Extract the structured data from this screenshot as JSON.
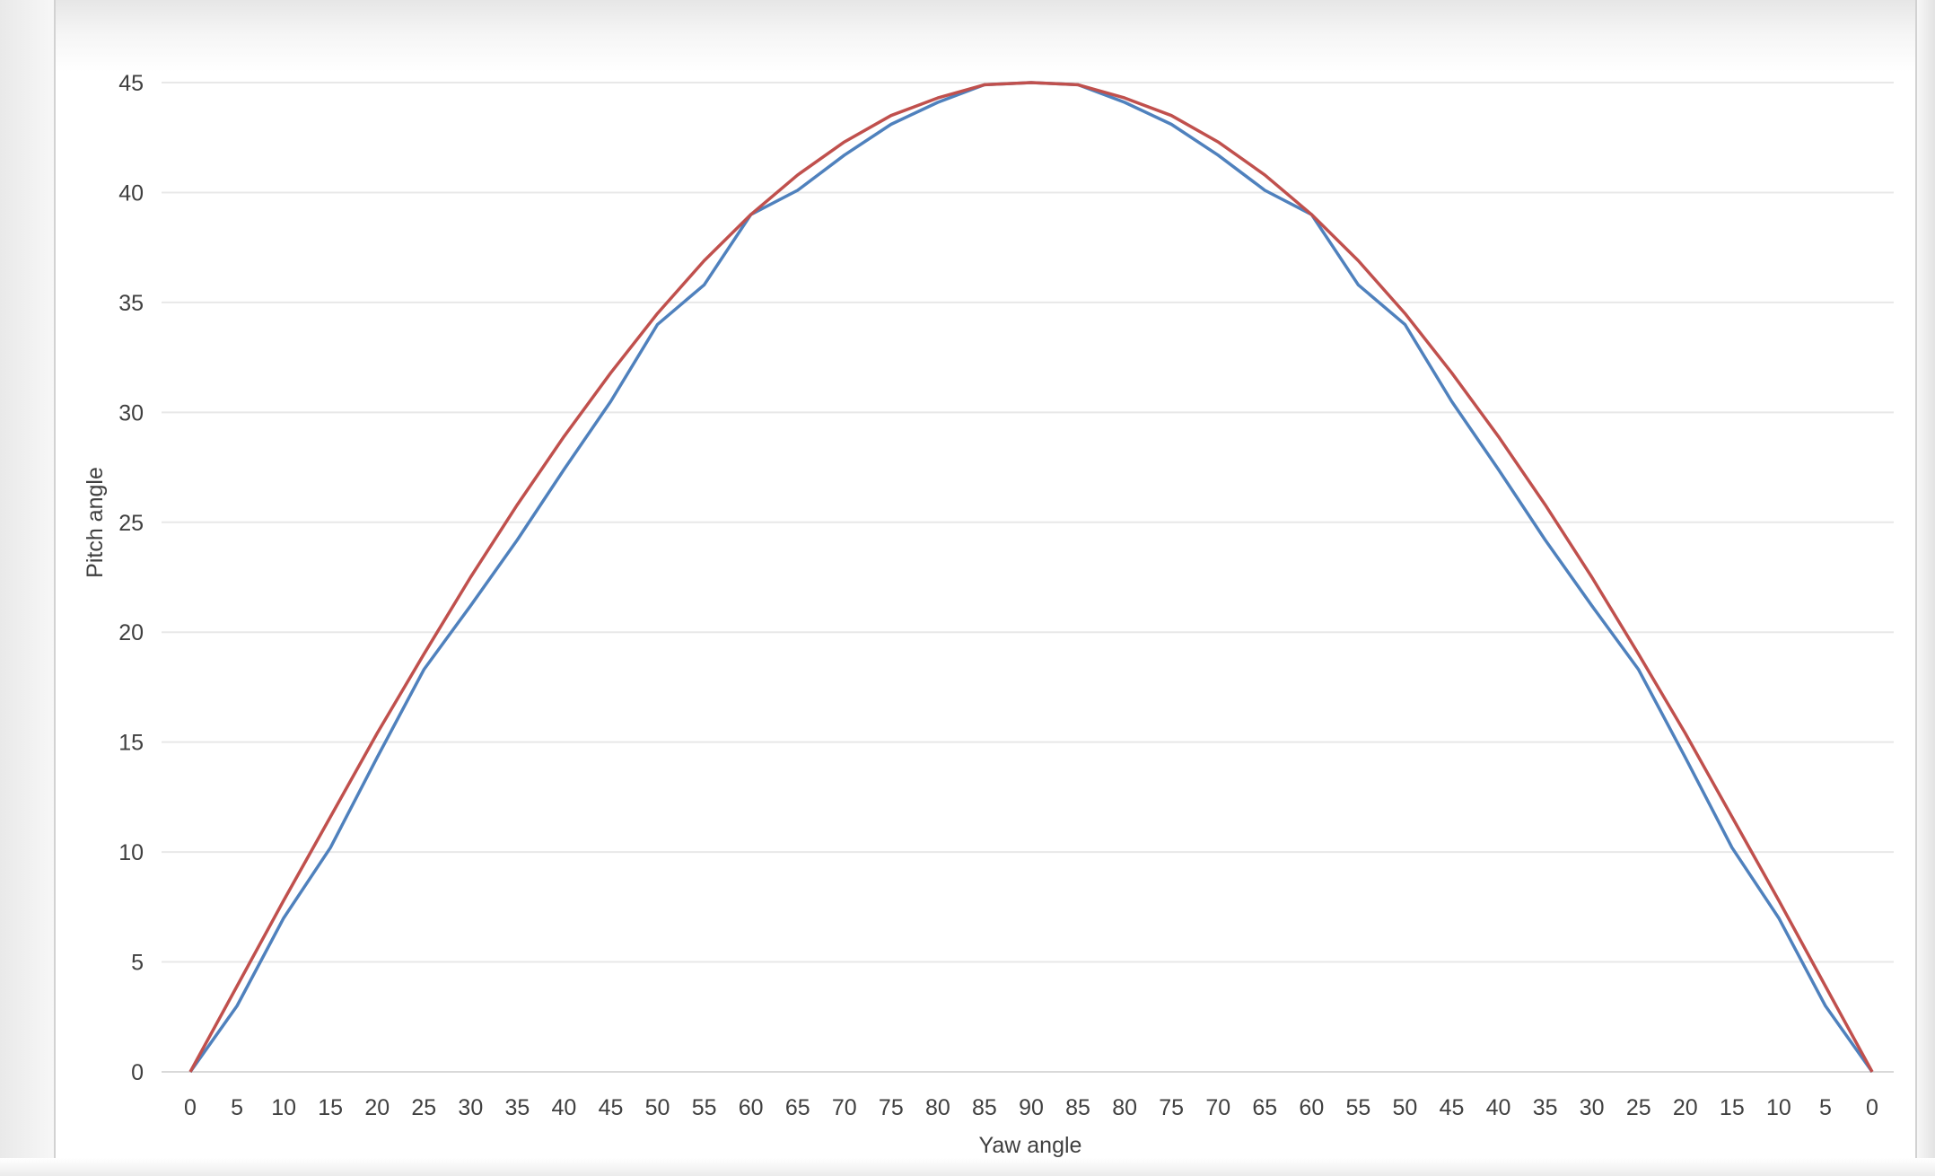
{
  "chart_data": {
    "type": "line",
    "title": "",
    "xlabel": "Yaw angle",
    "ylabel": "Pitch angle",
    "categories": [
      "0",
      "5",
      "10",
      "15",
      "20",
      "25",
      "30",
      "35",
      "40",
      "45",
      "50",
      "55",
      "60",
      "65",
      "70",
      "75",
      "80",
      "85",
      "90",
      "85",
      "80",
      "75",
      "70",
      "65",
      "60",
      "55",
      "50",
      "45",
      "40",
      "35",
      "30",
      "25",
      "20",
      "15",
      "10",
      "5",
      "0"
    ],
    "ylim": [
      0,
      45
    ],
    "yticks": [
      0,
      5,
      10,
      15,
      20,
      25,
      30,
      35,
      40,
      45
    ],
    "grid": true,
    "legend": "none",
    "series": [
      {
        "color": "#4f81bd",
        "values": [
          0,
          3,
          7,
          10.2,
          14.3,
          18.3,
          21.2,
          24.2,
          27.4,
          30.5,
          34.0,
          35.8,
          39.0,
          40.1,
          41.7,
          43.1,
          44.1,
          44.9,
          45,
          44.9,
          44.1,
          43.1,
          41.7,
          40.1,
          39.0,
          35.8,
          34.0,
          30.5,
          27.4,
          24.2,
          21.2,
          18.3,
          14.3,
          10.2,
          7,
          3,
          0
        ]
      },
      {
        "color": "#c0504d",
        "values": [
          0,
          3.9,
          7.8,
          11.6,
          15.4,
          19.0,
          22.5,
          25.8,
          28.9,
          31.8,
          34.5,
          36.9,
          39.0,
          40.8,
          42.3,
          43.5,
          44.3,
          44.9,
          45,
          44.9,
          44.3,
          43.5,
          42.3,
          40.8,
          39.0,
          36.9,
          34.5,
          31.8,
          28.9,
          25.8,
          22.5,
          19.0,
          15.4,
          11.6,
          7.8,
          3.9,
          0
        ]
      }
    ]
  }
}
